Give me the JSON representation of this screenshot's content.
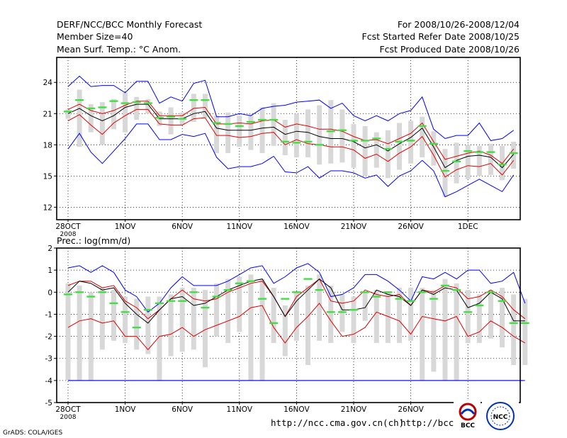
{
  "header": {
    "title": "DERF/NCC/BCC Monthly Forecast",
    "member_size": "Member Size=40",
    "variable": "Mean Surf. Temp.: °C Anom.",
    "period": "For 2008/10/26-2008/12/04",
    "start_date": "Fcst Started Refer Date 2008/10/25",
    "produced_date": "Fcst Produced Date 2008/10/26"
  },
  "footer": {
    "grads_credit": "GrADS: COLA/IGES",
    "url_main": "http://ncc.cma.gov.cn(ch)",
    "url_partial": "http://bcc.c",
    "logo_bcc": "BCC",
    "logo_ncc": "NCC"
  },
  "colors": {
    "spread_bars": "#d8d8d8",
    "envelope": "#0000ff",
    "range_red": "#e00000",
    "mean_line": "#000000",
    "member_marker": "#44dd44"
  },
  "chart_data": [
    {
      "type": "line",
      "name": "temperature",
      "title": "Mean Surf. Temp.: °C Anom.",
      "xlabel": "",
      "ylabel": "",
      "x_days": 40,
      "xlim": [
        0,
        40
      ],
      "ylim": [
        10.8,
        26.4
      ],
      "yticks": [
        12,
        15,
        18,
        21,
        24
      ],
      "grid": true,
      "x_ticks": [
        {
          "day": 0,
          "label": "28OCT",
          "sub": "2008"
        },
        {
          "day": 5,
          "label": "1NOV",
          "sub": ""
        },
        {
          "day": 10,
          "label": "6NOV",
          "sub": ""
        },
        {
          "day": 15,
          "label": "11NOV",
          "sub": ""
        },
        {
          "day": 20,
          "label": "16NOV",
          "sub": ""
        },
        {
          "day": 25,
          "label": "21NOV",
          "sub": ""
        },
        {
          "day": 30,
          "label": "26NOV",
          "sub": ""
        },
        {
          "day": 35,
          "label": "1DEC",
          "sub": ""
        }
      ],
      "series": [
        {
          "name": "upper-envelope",
          "color": "#0000ff",
          "values": [
            23.6,
            24.6,
            23.6,
            23.7,
            23.7,
            23.0,
            24.1,
            24.1,
            22.0,
            22.6,
            22.2,
            23.9,
            24.2,
            20.7,
            20.7,
            21.0,
            20.8,
            21.5,
            21.7,
            21.8,
            22.1,
            22.2,
            22.3,
            21.5,
            22.0,
            20.8,
            20.3,
            20.8,
            20.3,
            21.0,
            21.3,
            22.6,
            19.5,
            18.6,
            18.9,
            18.9,
            20.1,
            18.4,
            18.6,
            19.4
          ]
        },
        {
          "name": "upper-red",
          "color": "#e00000",
          "values": [
            21.4,
            21.9,
            21.3,
            21.0,
            21.3,
            21.8,
            22.2,
            22.2,
            20.8,
            20.8,
            20.8,
            21.5,
            21.6,
            20.0,
            20.0,
            20.1,
            20.0,
            20.3,
            20.4,
            19.7,
            20.0,
            19.8,
            19.5,
            19.5,
            19.3,
            18.8,
            18.4,
            18.5,
            18.1,
            18.6,
            19.1,
            20.1,
            18.3,
            16.6,
            16.9,
            17.2,
            17.4,
            17.0,
            16.2,
            17.6
          ]
        },
        {
          "name": "ensemble-mean",
          "color": "#000000",
          "values": [
            21.0,
            21.5,
            20.8,
            20.3,
            20.8,
            21.6,
            21.9,
            21.9,
            20.5,
            20.5,
            20.5,
            21.0,
            21.2,
            19.6,
            19.4,
            19.4,
            19.4,
            19.6,
            19.7,
            19.0,
            19.3,
            19.2,
            18.8,
            18.6,
            18.6,
            18.3,
            17.7,
            18.0,
            17.4,
            18.1,
            18.7,
            19.6,
            17.8,
            15.8,
            16.5,
            16.9,
            17.0,
            16.8,
            15.8,
            17.1
          ]
        },
        {
          "name": "lower-red",
          "color": "#e00000",
          "values": [
            20.3,
            20.9,
            19.9,
            19.0,
            20.1,
            20.8,
            21.4,
            21.4,
            20.0,
            19.9,
            19.9,
            20.5,
            20.6,
            18.9,
            18.9,
            18.7,
            18.8,
            19.1,
            19.2,
            18.0,
            18.5,
            18.1,
            18.0,
            17.8,
            17.8,
            17.5,
            16.7,
            17.1,
            16.4,
            17.2,
            17.8,
            18.8,
            17.0,
            14.9,
            15.6,
            16.0,
            15.9,
            16.2,
            15.1,
            16.5
          ]
        },
        {
          "name": "lower-envelope",
          "color": "#0000ff",
          "values": [
            17.6,
            19.1,
            17.3,
            16.2,
            17.4,
            18.6,
            20.0,
            20.0,
            18.5,
            18.5,
            19.0,
            18.8,
            19.1,
            16.8,
            15.7,
            15.9,
            15.9,
            16.2,
            16.9,
            15.4,
            15.3,
            15.9,
            14.8,
            15.5,
            15.5,
            15.3,
            14.8,
            15.1,
            14.0,
            15.0,
            15.5,
            16.5,
            15.5,
            13.0,
            13.5,
            14.1,
            14.7,
            14.1,
            13.5,
            15.1
          ]
        }
      ],
      "spread_bars": {
        "days": [
          0,
          1,
          2,
          3,
          4,
          5,
          6,
          7,
          8,
          9,
          10,
          11,
          12,
          13,
          14,
          15,
          16,
          17,
          18,
          19,
          20,
          21,
          22,
          23,
          24,
          25,
          26,
          27,
          28,
          29,
          30,
          31,
          32,
          33,
          34,
          35,
          36,
          37,
          38,
          39
        ],
        "low": [
          20.5,
          17.8,
          19.2,
          18.0,
          19.5,
          19.2,
          20.4,
          21.0,
          19.8,
          19.0,
          19.9,
          20.2,
          20.6,
          17.2,
          17.2,
          17.8,
          17.5,
          17.2,
          17.9,
          17.0,
          16.8,
          16.8,
          16.1,
          16.2,
          16.3,
          15.8,
          15.0,
          15.8,
          14.8,
          15.6,
          16.2,
          16.8,
          16.0,
          13.0,
          14.3,
          14.7,
          15.0,
          15.1,
          14.6,
          15.7
        ],
        "high": [
          21.4,
          23.3,
          21.9,
          22.1,
          22.4,
          23.0,
          22.6,
          22.4,
          21.2,
          21.6,
          21.1,
          22.9,
          22.9,
          20.8,
          21.1,
          20.8,
          20.9,
          21.6,
          22.0,
          20.4,
          21.0,
          21.4,
          21.8,
          22.3,
          21.4,
          20.0,
          19.8,
          19.2,
          19.4,
          20.1,
          20.3,
          20.7,
          19.3,
          17.6,
          18.2,
          18.0,
          17.9,
          18.1,
          17.9,
          18.3
        ]
      },
      "members": {
        "days": [
          0,
          1,
          2,
          3,
          4,
          5,
          6,
          7,
          8,
          9,
          10,
          11,
          12,
          13,
          14,
          15,
          16,
          17,
          18,
          19,
          20,
          21,
          22,
          23,
          24,
          25,
          26,
          27,
          28,
          29,
          30,
          31,
          32,
          33,
          34,
          35,
          36,
          37,
          38,
          39
        ],
        "values": [
          21.2,
          22.3,
          21.5,
          21.6,
          22.2,
          22.0,
          22.1,
          22.0,
          20.6,
          20.7,
          20.5,
          22.3,
          22.3,
          20.1,
          20.0,
          19.8,
          20.2,
          20.4,
          20.4,
          18.3,
          18.2,
          18.3,
          18.0,
          19.3,
          19.4,
          18.4,
          18.4,
          18.6,
          17.6,
          18.3,
          18.4,
          19.8,
          18.1,
          15.5,
          16.4,
          17.4,
          17.3,
          17.3,
          16.1,
          17.2
        ]
      }
    },
    {
      "type": "line",
      "name": "precipitation",
      "title": "Prec.: log(mm/d)",
      "xlabel": "",
      "ylabel": "",
      "x_days": 40,
      "xlim": [
        0,
        40
      ],
      "ylim": [
        -5,
        2
      ],
      "yticks": [
        -5,
        -4,
        -3,
        -2,
        -1,
        0,
        1,
        2
      ],
      "grid": true,
      "x_ticks": [
        {
          "day": 0,
          "label": "28OCT",
          "sub": "2008"
        },
        {
          "day": 5,
          "label": "1NOV",
          "sub": ""
        },
        {
          "day": 10,
          "label": "6NOV",
          "sub": ""
        },
        {
          "day": 15,
          "label": "11NOV",
          "sub": ""
        },
        {
          "day": 20,
          "label": "16NOV",
          "sub": ""
        },
        {
          "day": 25,
          "label": "21NOV",
          "sub": ""
        },
        {
          "day": 30,
          "label": "26NOV",
          "sub": ""
        },
        {
          "day": 35,
          "label": "1DEC",
          "sub": ""
        }
      ],
      "baseline": {
        "value": -4,
        "color": "#0000ff"
      },
      "series": [
        {
          "name": "upper-envelope",
          "color": "#0000ff",
          "values": [
            1.1,
            1.2,
            0.9,
            1.2,
            0.9,
            0.1,
            -0.2,
            -0.9,
            -0.5,
            0.2,
            0.7,
            0.3,
            0.3,
            0.3,
            0.5,
            0.8,
            1.1,
            1.2,
            0.4,
            0.7,
            1.1,
            1.3,
            0.9,
            -0.2,
            -0.1,
            0.2,
            0.8,
            0.8,
            0.5,
            0.1,
            -0.4,
            0.7,
            0.6,
            0.9,
            0.6,
            1.0,
            1.0,
            0.4,
            0.5,
            0.9,
            -0.5
          ]
        },
        {
          "name": "upper-red",
          "color": "#e00000",
          "values": [
            0.3,
            0.5,
            0.5,
            0.2,
            0.3,
            -0.4,
            -0.7,
            -1.2,
            -0.8,
            -0.3,
            0.1,
            -0.3,
            -0.4,
            -0.3,
            0.0,
            0.2,
            0.4,
            0.5,
            -0.2,
            -1.1,
            -0.2,
            0.2,
            0.6,
            -0.4,
            -0.5,
            -0.4,
            0.1,
            -0.1,
            -0.2,
            -0.1,
            -0.6,
            0.1,
            0.0,
            0.3,
            0.2,
            -0.3,
            -0.2,
            0.1,
            -0.2,
            -0.8,
            -1.2
          ]
        },
        {
          "name": "ensemble-mean",
          "color": "#000000",
          "values": [
            0.0,
            0.5,
            0.4,
            0.1,
            0.2,
            -0.5,
            -1.0,
            -1.4,
            -0.8,
            -0.3,
            -0.2,
            -0.6,
            -0.5,
            -0.2,
            0.1,
            0.3,
            0.5,
            0.6,
            -0.2,
            -1.1,
            -0.4,
            0.1,
            0.6,
            0.2,
            -0.8,
            -0.8,
            -0.7,
            0.1,
            -0.1,
            -0.2,
            -0.6,
            0.1,
            -0.1,
            0.2,
            0.1,
            -0.7,
            -0.5,
            0.0,
            -0.3,
            -1.3,
            -1.3
          ]
        },
        {
          "name": "lower-red",
          "color": "#e00000",
          "values": [
            -1.6,
            -1.3,
            -1.2,
            -1.4,
            -1.3,
            -2.0,
            -2.0,
            -2.6,
            -2.0,
            -1.9,
            -1.6,
            -2.0,
            -1.7,
            -1.5,
            -1.3,
            -1.1,
            -0.7,
            -0.6,
            -1.6,
            -2.3,
            -1.6,
            -1.1,
            -0.5,
            -1.3,
            -2.0,
            -1.9,
            -1.6,
            -0.9,
            -1.1,
            -1.3,
            -1.9,
            -1.1,
            -1.2,
            -1.3,
            -1.1,
            -2.0,
            -1.8,
            -1.3,
            -1.6,
            -2.0,
            -2.3
          ]
        },
        {
          "name": "lower-envelope",
          "color": "#0000ff",
          "values": [
            -4.0,
            -4.0,
            -4.0,
            -4.0,
            -4.0,
            -4.0,
            -4.0,
            -4.0,
            -4.0,
            -4.0,
            -4.0,
            -4.0,
            -4.0,
            -4.0,
            -4.0,
            -4.0,
            -4.0,
            -4.0,
            -4.0,
            -4.0,
            -4.0,
            -4.0,
            -4.0,
            -4.0,
            -4.0,
            -4.0,
            -4.0,
            -4.0,
            -4.0,
            -4.0,
            -4.0,
            -4.0,
            -4.0,
            -4.0,
            -4.0,
            -4.0,
            -4.0,
            -4.0,
            -4.0,
            -4.0,
            -4.0
          ]
        }
      ],
      "spread_bars": {
        "days": [
          0,
          1,
          2,
          3,
          4,
          5,
          6,
          7,
          8,
          9,
          10,
          11,
          12,
          13,
          14,
          15,
          16,
          17,
          18,
          19,
          20,
          21,
          22,
          23,
          24,
          25,
          26,
          27,
          28,
          29,
          30,
          31,
          32,
          33,
          34,
          35,
          36,
          37,
          38,
          39,
          40
        ],
        "low": [
          -4.0,
          -4.0,
          -4.0,
          -2.6,
          -2.2,
          -2.3,
          -2.6,
          -2.8,
          -4.0,
          -2.9,
          -2.7,
          -2.6,
          -3.4,
          -2.0,
          -2.3,
          -1.8,
          -4.0,
          -4.0,
          -2.3,
          -2.9,
          -2.2,
          -3.3,
          -2.2,
          -2.3,
          -1.8,
          -2.3,
          -1.3,
          -2.3,
          -2.3,
          -2.3,
          -2.2,
          -4.0,
          -3.6,
          -4.0,
          -4.0,
          -2.3,
          -2.3,
          -2.1,
          -2.5,
          -3.3,
          -3.3
        ],
        "high": [
          0.4,
          0.3,
          0.0,
          0.2,
          0.1,
          -0.2,
          -0.3,
          -0.2,
          -0.2,
          -0.1,
          0.2,
          0.2,
          0.1,
          0.4,
          0.6,
          0.7,
          0.8,
          0.6,
          0.2,
          -0.6,
          0.0,
          0.3,
          0.8,
          0.3,
          -0.1,
          -0.2,
          0.0,
          0.1,
          0.0,
          0.2,
          0.2,
          0.2,
          0.1,
          0.6,
          0.4,
          0.1,
          -0.1,
          0.1,
          0.2,
          -0.1,
          -0.3
        ]
      },
      "members": {
        "days": [
          0,
          1,
          2,
          3,
          4,
          5,
          6,
          7,
          8,
          9,
          10,
          11,
          12,
          13,
          14,
          15,
          16,
          17,
          18,
          19,
          20,
          21,
          22,
          23,
          24,
          25,
          26,
          27,
          28,
          29,
          30,
          31,
          32,
          33,
          34,
          35,
          36,
          37,
          38,
          39,
          40
        ],
        "values": [
          -0.1,
          0.0,
          -0.2,
          0.0,
          -0.5,
          -0.9,
          -1.6,
          -0.8,
          -0.5,
          -0.4,
          -0.4,
          0.0,
          -0.7,
          -0.2,
          0.1,
          0.4,
          0.5,
          -0.3,
          -1.4,
          -0.3,
          0.0,
          0.6,
          0.1,
          -0.9,
          -0.9,
          -0.8,
          0.0,
          -0.2,
          0.0,
          -0.3,
          -0.4,
          0.0,
          -0.3,
          0.3,
          0.1,
          -0.9,
          -0.6,
          0.0,
          -0.4,
          -1.4,
          -1.4
        ]
      }
    }
  ]
}
